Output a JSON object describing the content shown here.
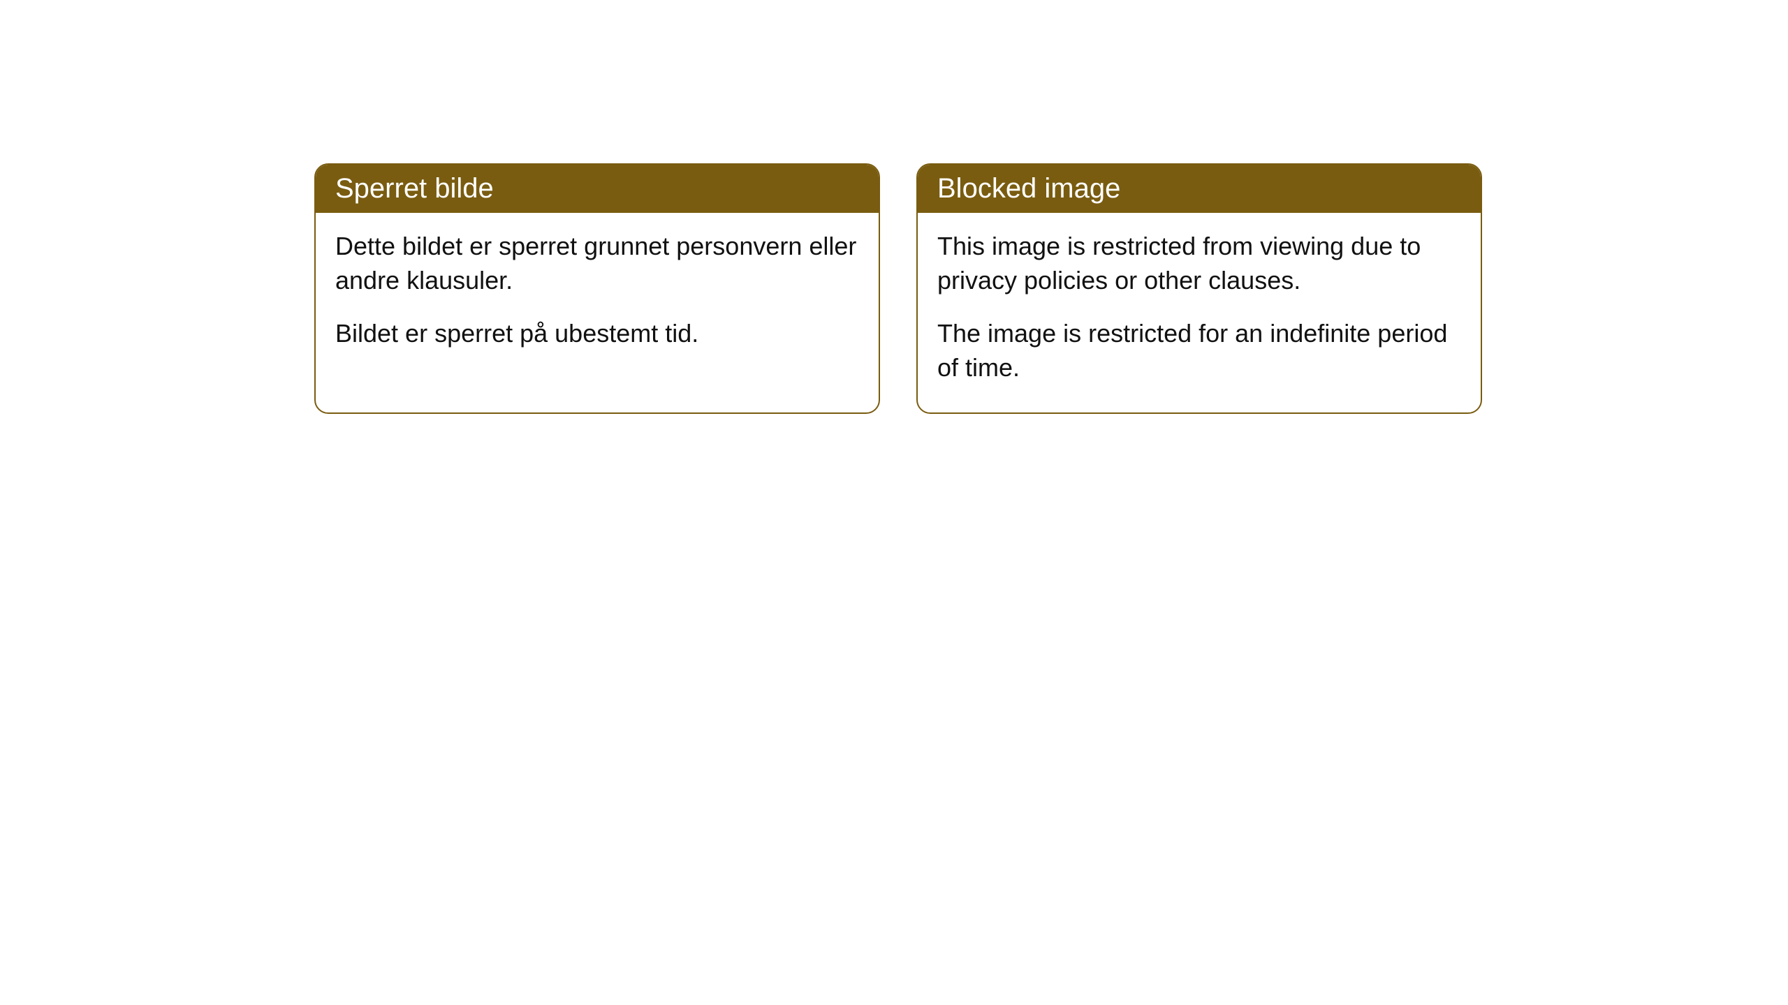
{
  "cards": [
    {
      "title": "Sperret bilde",
      "paragraph1": "Dette bildet er sperret grunnet personvern eller andre klausuler.",
      "paragraph2": "Bildet er sperret på ubestemt tid."
    },
    {
      "title": "Blocked image",
      "paragraph1": "This image is restricted from viewing due to privacy policies or other clauses.",
      "paragraph2": "The image is restricted for an indefinite period of time."
    }
  ],
  "colors": {
    "header_bg": "#795c10",
    "header_text": "#ffffff",
    "border": "#795c10",
    "body_text": "#111111",
    "card_bg": "#ffffff",
    "page_bg": "#ffffff"
  }
}
